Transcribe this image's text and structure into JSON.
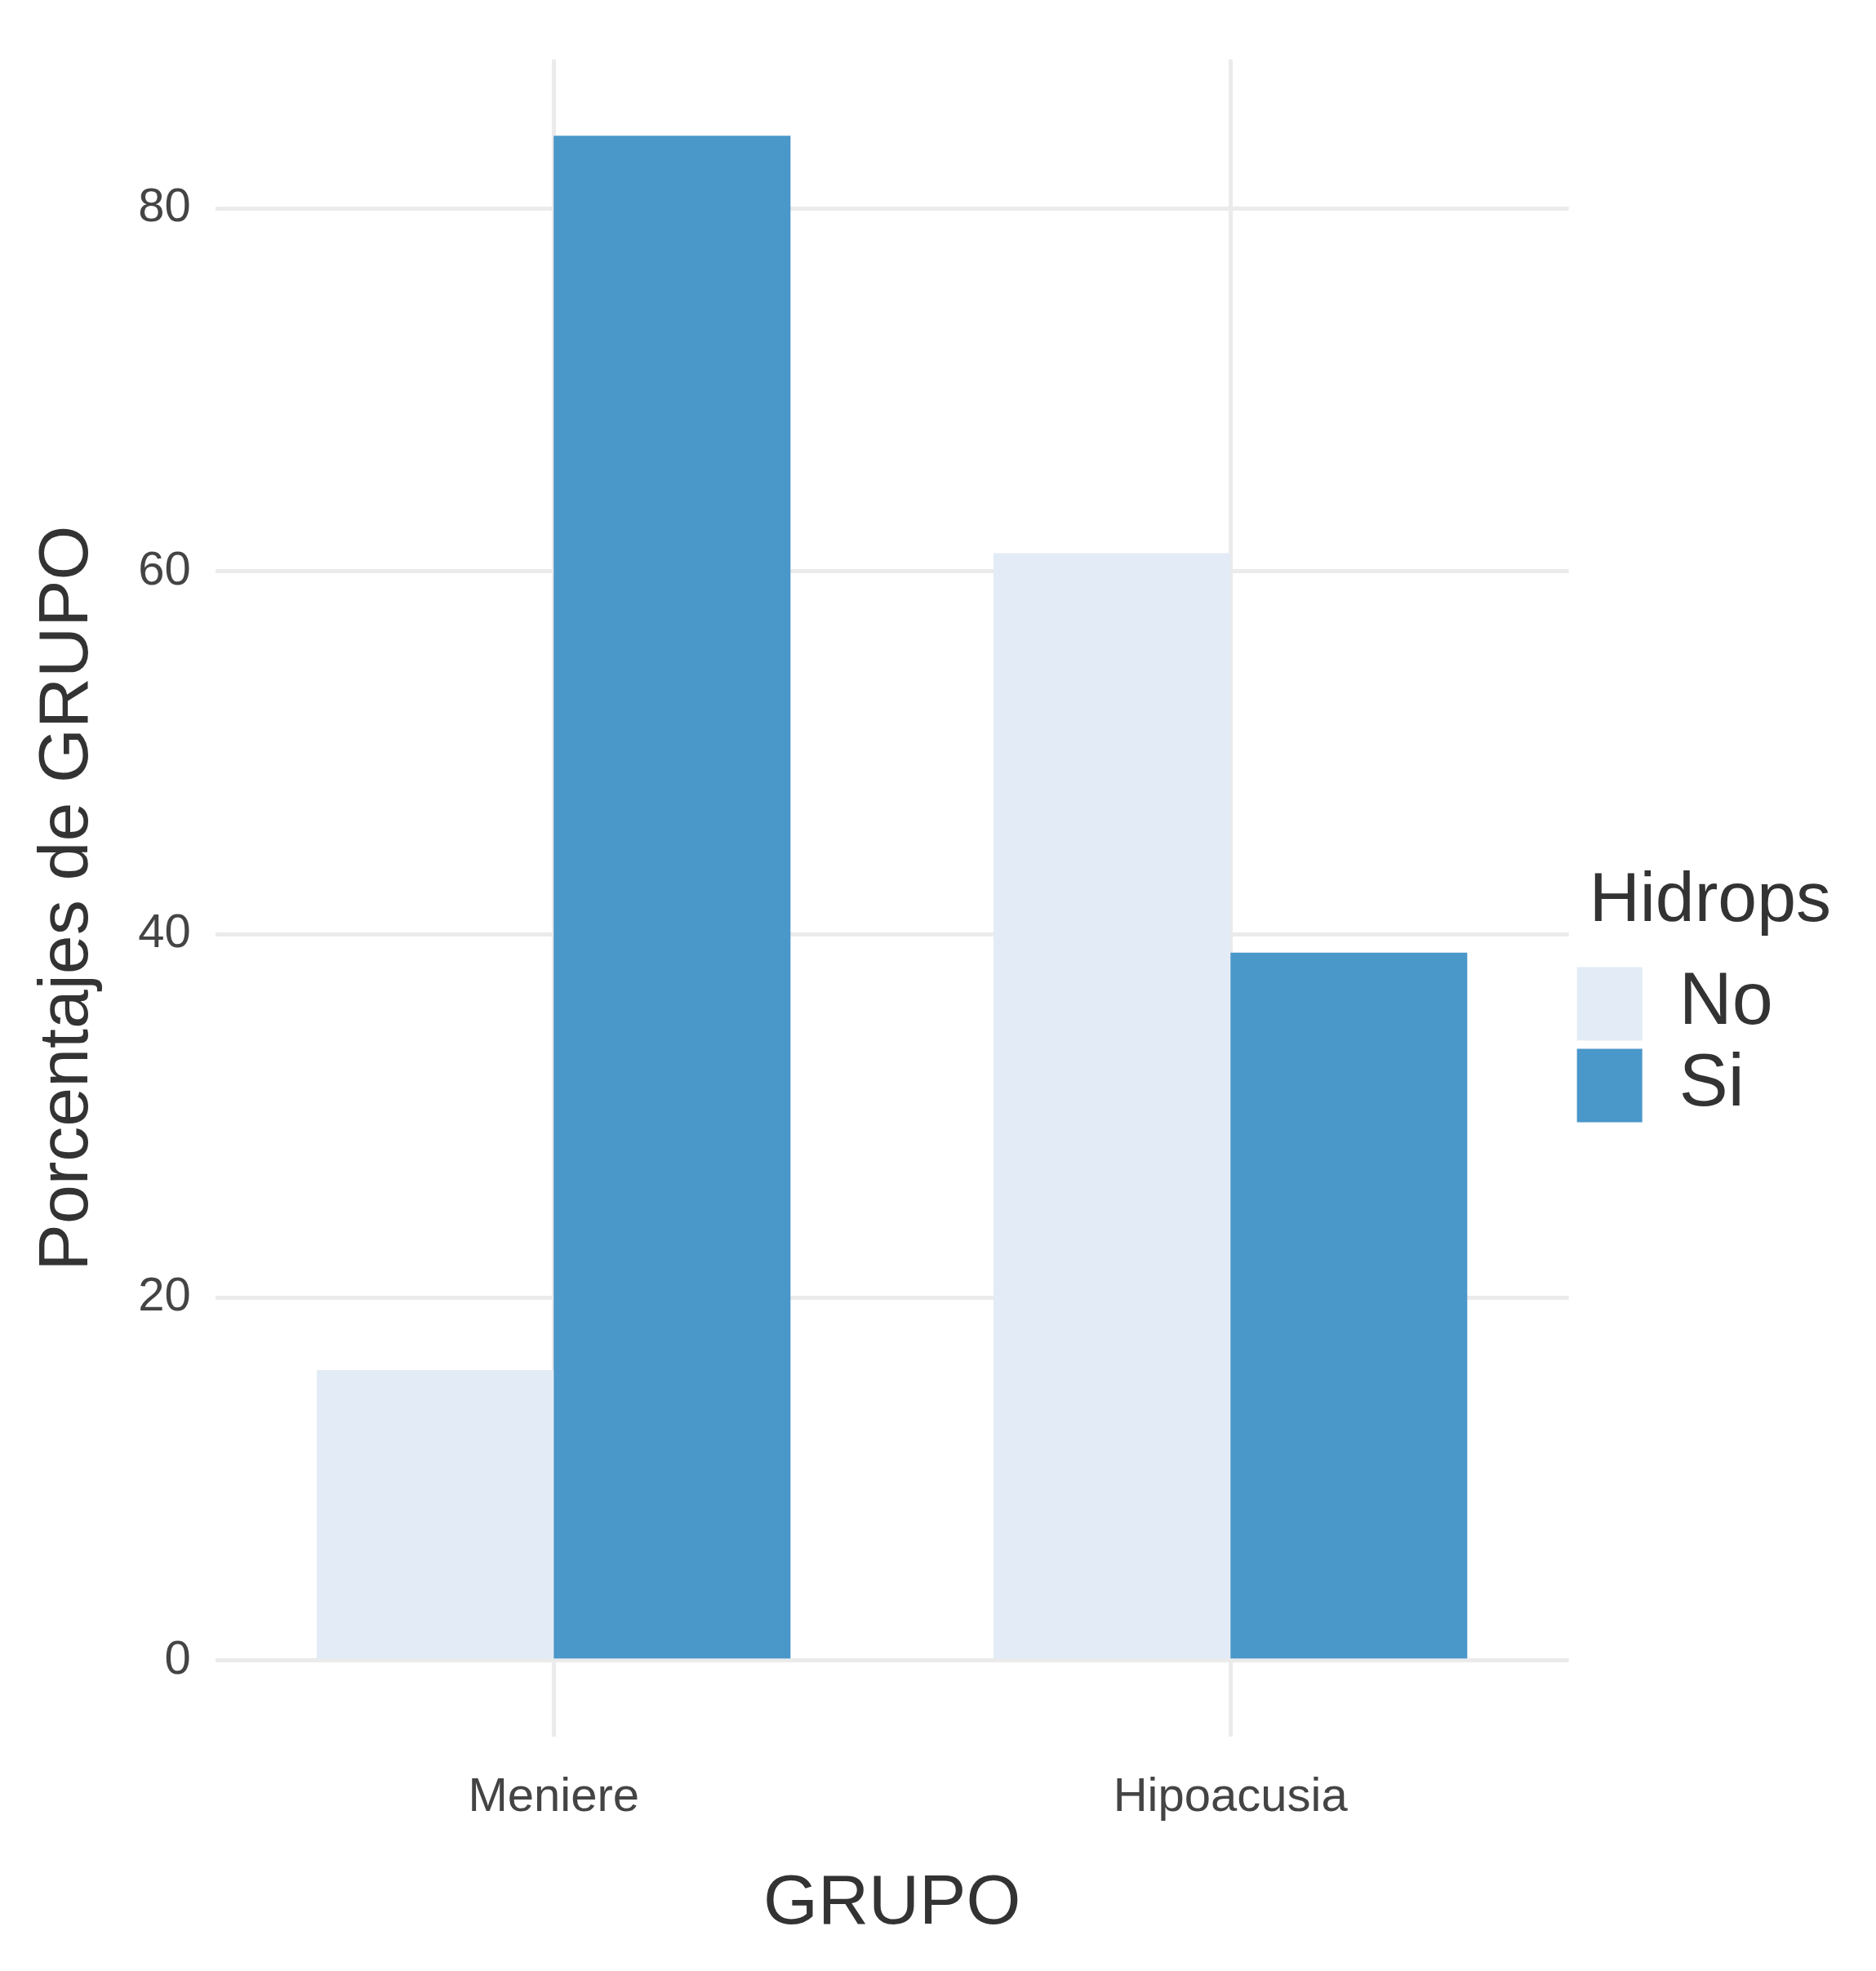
{
  "chart_data": {
    "type": "bar",
    "xlabel": "GRUPO",
    "ylabel": "Porcentajes de GRUPO",
    "legend_title": "Hidrops",
    "categories": [
      "Meniere",
      "Hipoacusia"
    ],
    "series": [
      {
        "name": "No",
        "color": "#e3ecf6",
        "values": [
          16,
          61
        ]
      },
      {
        "name": "Si",
        "color": "#4a97c9",
        "values": [
          84,
          39
        ]
      }
    ],
    "ylim": [
      -4.2,
      88.2
    ],
    "yticks": [
      0,
      20,
      40,
      60,
      80
    ],
    "grid": true,
    "legend": "right"
  }
}
